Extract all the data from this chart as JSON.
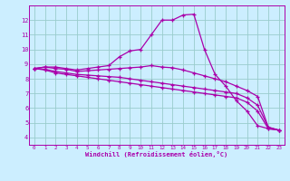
{
  "xlabel": "Windchill (Refroidissement éolien,°C)",
  "xlim": [
    -0.5,
    23.5
  ],
  "ylim": [
    3.5,
    13.0
  ],
  "yticks": [
    4,
    5,
    6,
    7,
    8,
    9,
    10,
    11,
    12
  ],
  "xticks": [
    0,
    1,
    2,
    3,
    4,
    5,
    6,
    7,
    8,
    9,
    10,
    11,
    12,
    13,
    14,
    15,
    16,
    17,
    18,
    19,
    20,
    21,
    22,
    23
  ],
  "bg_color": "#cceeff",
  "line_color": "#aa00aa",
  "grid_color": "#99cccc",
  "lines": [
    [
      8.7,
      8.8,
      8.8,
      8.7,
      8.6,
      8.7,
      8.8,
      8.9,
      9.5,
      9.9,
      10.0,
      11.0,
      12.0,
      12.0,
      12.35,
      12.4,
      10.0,
      8.3,
      7.5,
      6.5,
      5.8,
      4.8,
      4.6,
      4.5
    ],
    [
      8.7,
      8.8,
      8.7,
      8.65,
      8.5,
      8.55,
      8.6,
      8.65,
      8.7,
      8.75,
      8.8,
      8.9,
      8.8,
      8.75,
      8.6,
      8.4,
      8.2,
      8.0,
      7.8,
      7.5,
      7.2,
      6.8,
      4.7,
      4.5
    ],
    [
      8.7,
      8.65,
      8.5,
      8.4,
      8.3,
      8.25,
      8.2,
      8.15,
      8.1,
      8.0,
      7.9,
      7.8,
      7.7,
      7.6,
      7.5,
      7.4,
      7.3,
      7.2,
      7.1,
      7.0,
      6.7,
      6.2,
      4.7,
      4.5
    ],
    [
      8.7,
      8.6,
      8.4,
      8.3,
      8.2,
      8.1,
      8.0,
      7.9,
      7.8,
      7.7,
      7.6,
      7.5,
      7.4,
      7.3,
      7.2,
      7.1,
      7.0,
      6.9,
      6.8,
      6.7,
      6.4,
      5.8,
      4.6,
      4.5
    ]
  ]
}
